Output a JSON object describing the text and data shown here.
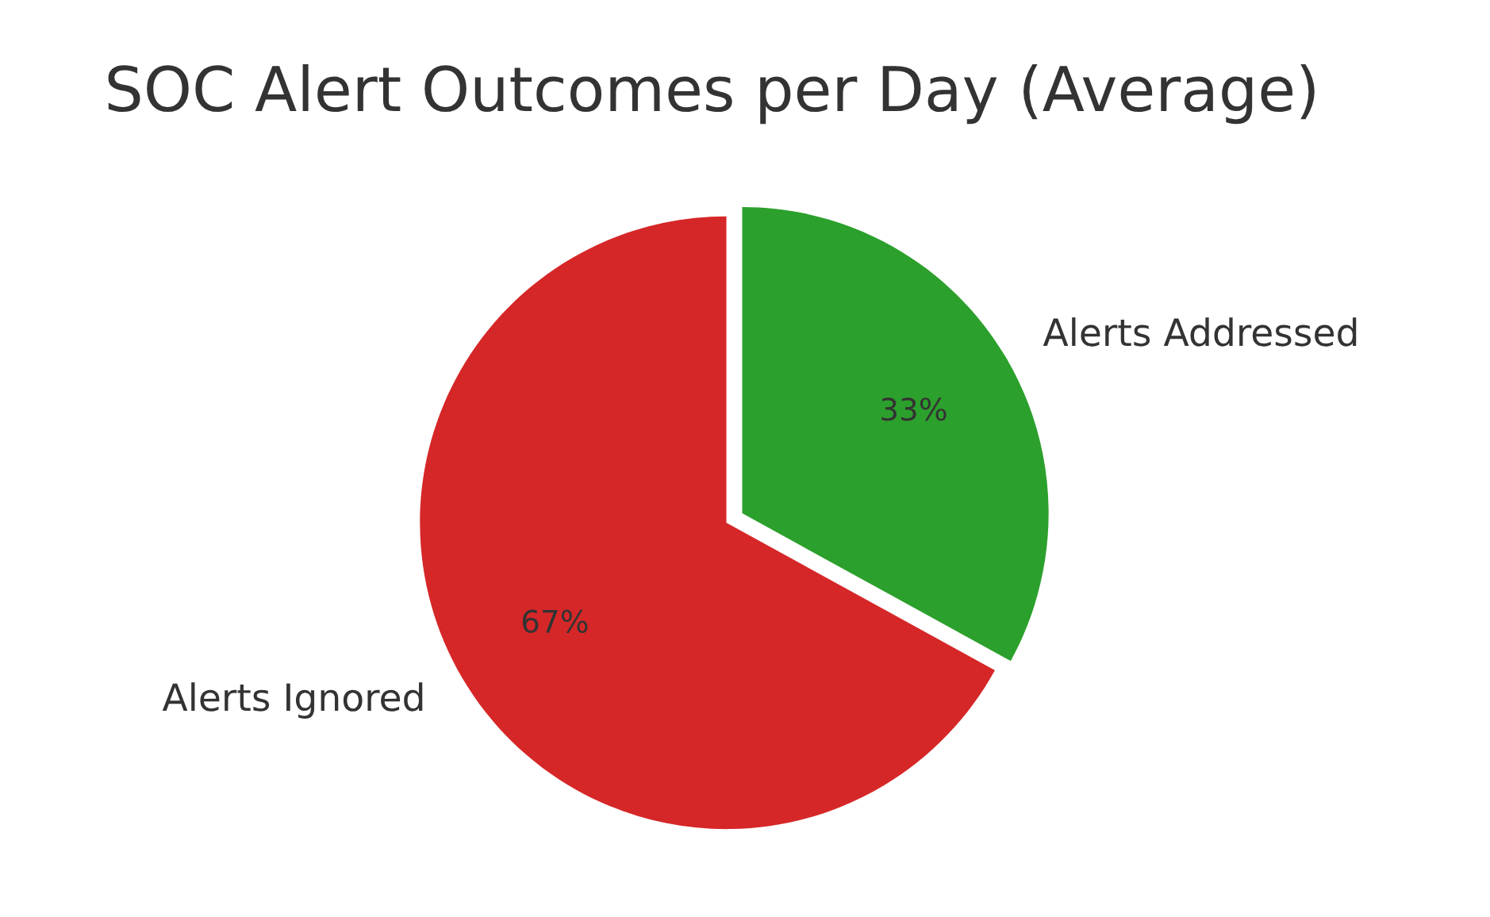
{
  "chart_data": {
    "type": "pie",
    "title": "SOC Alert Outcomes per Day (Average)",
    "categories": [
      "Alerts Ignored",
      "Alerts Addressed"
    ],
    "values": [
      67,
      33
    ],
    "colors": [
      "#d62728",
      "#2ca02c"
    ],
    "value_labels": [
      "67%",
      "33%"
    ]
  }
}
